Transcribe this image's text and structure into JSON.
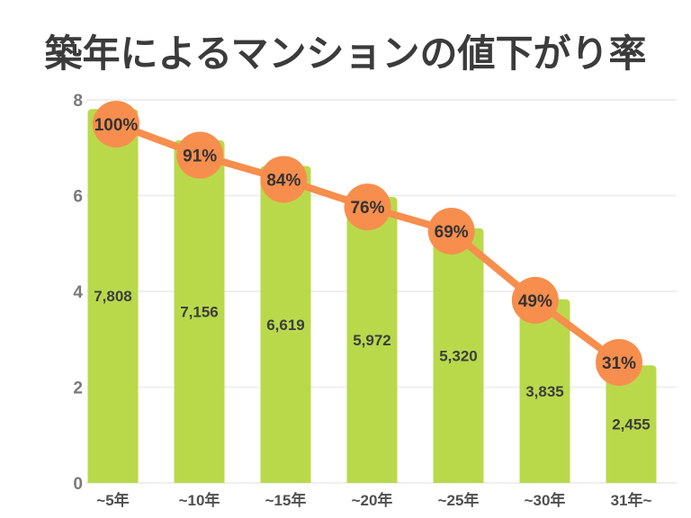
{
  "title": "築年によるマンションの値下がり率",
  "colors": {
    "background": "#ffffff",
    "bar": "#b9d94b",
    "line": "#f78e4d",
    "marker": "#f78e4d",
    "title_text": "#3b3b3b",
    "value_text": "#3d3d3d",
    "pct_text": "#333333",
    "y_label": "#7a7a7a",
    "x_label": "#505050",
    "gridline": "#efefef"
  },
  "chart_data": {
    "type": "bar",
    "subtype": "bar-with-line-overlay",
    "title": "築年によるマンションの値下がり率",
    "categories": [
      "~5年",
      "~10年",
      "~15年",
      "~20年",
      "~25年",
      "~30年",
      "31年~"
    ],
    "series": [
      {
        "name": "price",
        "type": "bar",
        "values": [
          7808,
          7156,
          6619,
          5972,
          5320,
          3835,
          2455
        ],
        "labels": [
          "7,808",
          "7,156",
          "6,619",
          "5,972",
          "5,320",
          "3,835",
          "2,455"
        ]
      },
      {
        "name": "depreciation-rate",
        "type": "line",
        "values": [
          100,
          91,
          84,
          76,
          69,
          49,
          31
        ],
        "labels": [
          "100%",
          "91%",
          "84%",
          "76%",
          "69%",
          "49%",
          "31%"
        ]
      }
    ],
    "y_axis": {
      "ticks": [
        0,
        2,
        4,
        6,
        8
      ],
      "min": 0,
      "max": 8
    },
    "xlabel": "",
    "ylabel": "",
    "grid": true,
    "legend_position": "none"
  }
}
